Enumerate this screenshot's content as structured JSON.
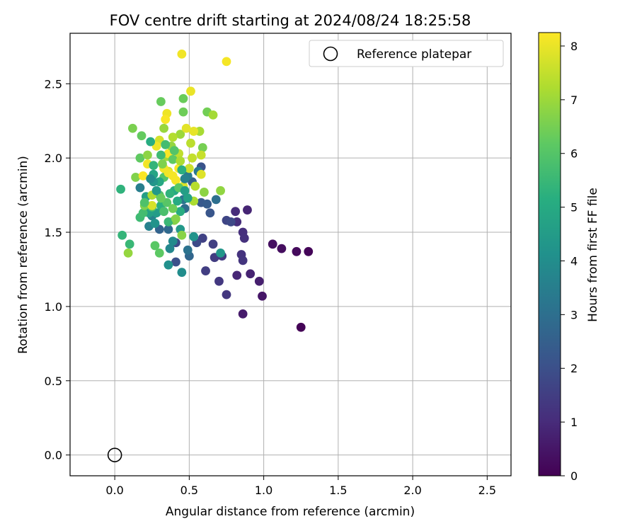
{
  "chart_data": {
    "type": "scatter",
    "title": "FOV centre drift starting at 2024/08/24 18:25:58",
    "xlabel": "Angular distance from reference (arcmin)",
    "ylabel": "Rotation from reference (arcmin)",
    "xlim": [
      -0.3,
      2.66
    ],
    "ylim": [
      -0.14,
      2.84
    ],
    "xticks": [
      0.0,
      0.5,
      1.0,
      1.5,
      2.0,
      2.5
    ],
    "xtick_labels": [
      "0.0",
      "0.5",
      "1.0",
      "1.5",
      "2.0",
      "2.5"
    ],
    "yticks": [
      0.0,
      0.5,
      1.0,
      1.5,
      2.0,
      2.5
    ],
    "ytick_labels": [
      "0.0",
      "0.5",
      "1.0",
      "1.5",
      "2.0",
      "2.5"
    ],
    "grid": true,
    "legend": {
      "placement": "upper-right",
      "entries": [
        {
          "label": "Reference platepar",
          "marker": "open-circle"
        }
      ]
    },
    "reference_point": {
      "x": 0.0,
      "y": 0.0
    },
    "colorbar": {
      "label": "Hours from first FF file",
      "range": [
        0,
        8.25
      ],
      "ticks": [
        0,
        1,
        2,
        3,
        4,
        5,
        6,
        7,
        8
      ],
      "tick_labels": [
        "0",
        "1",
        "2",
        "3",
        "4",
        "5",
        "6",
        "7",
        "8"
      ],
      "colormap": "viridis"
    },
    "points": [
      [
        1.25,
        0.86,
        0.05
      ],
      [
        1.3,
        1.37,
        0.1
      ],
      [
        1.22,
        1.37,
        0.2
      ],
      [
        1.12,
        1.39,
        0.3
      ],
      [
        1.06,
        1.42,
        0.35
      ],
      [
        0.99,
        1.07,
        0.5
      ],
      [
        0.86,
        0.95,
        0.6
      ],
      [
        0.97,
        1.17,
        0.7
      ],
      [
        0.91,
        1.22,
        0.8
      ],
      [
        0.82,
        1.21,
        0.9
      ],
      [
        0.89,
        1.65,
        0.85
      ],
      [
        0.81,
        1.64,
        1.0
      ],
      [
        0.82,
        1.57,
        1.05
      ],
      [
        0.86,
        1.5,
        1.1
      ],
      [
        0.87,
        1.46,
        1.15
      ],
      [
        0.85,
        1.35,
        1.2
      ],
      [
        0.86,
        1.31,
        1.25
      ],
      [
        0.75,
        1.08,
        1.3
      ],
      [
        0.7,
        1.17,
        1.35
      ],
      [
        0.72,
        1.34,
        1.4
      ],
      [
        0.67,
        1.33,
        1.45
      ],
      [
        0.61,
        1.24,
        1.5
      ],
      [
        0.66,
        1.42,
        1.55
      ],
      [
        0.59,
        1.46,
        1.6
      ],
      [
        0.75,
        1.58,
        1.7
      ],
      [
        0.78,
        1.57,
        1.8
      ],
      [
        0.55,
        1.43,
        1.85
      ],
      [
        0.41,
        1.43,
        1.9
      ],
      [
        0.41,
        1.3,
        2.0
      ],
      [
        0.58,
        1.94,
        2.1
      ],
      [
        0.64,
        1.63,
        2.2
      ],
      [
        0.58,
        1.7,
        2.3
      ],
      [
        0.62,
        1.69,
        2.4
      ],
      [
        0.52,
        1.84,
        2.5
      ],
      [
        0.3,
        1.52,
        2.6
      ],
      [
        0.5,
        1.34,
        2.7
      ],
      [
        0.36,
        1.52,
        2.8
      ],
      [
        0.47,
        1.66,
        2.9
      ],
      [
        0.68,
        1.72,
        3.0
      ],
      [
        0.49,
        1.38,
        3.1
      ],
      [
        0.46,
        1.72,
        3.2
      ],
      [
        0.56,
        1.91,
        3.3
      ],
      [
        0.49,
        1.88,
        3.4
      ],
      [
        0.17,
        1.8,
        3.5
      ],
      [
        0.23,
        1.54,
        3.6
      ],
      [
        0.25,
        1.61,
        3.7
      ],
      [
        0.37,
        1.39,
        3.8
      ],
      [
        0.39,
        1.44,
        3.9
      ],
      [
        0.45,
        1.23,
        4.0
      ],
      [
        0.36,
        1.28,
        4.1
      ],
      [
        0.53,
        1.47,
        4.2
      ],
      [
        0.71,
        1.36,
        4.3
      ],
      [
        0.44,
        1.52,
        4.4
      ],
      [
        0.28,
        1.63,
        4.5
      ],
      [
        0.21,
        1.74,
        4.6
      ],
      [
        0.23,
        1.63,
        4.7
      ],
      [
        0.26,
        1.89,
        4.8
      ],
      [
        0.35,
        1.91,
        4.9
      ],
      [
        0.4,
        1.78,
        5.0
      ],
      [
        0.44,
        1.64,
        5.1
      ],
      [
        0.31,
        1.68,
        5.2
      ],
      [
        0.04,
        1.79,
        5.3
      ],
      [
        0.05,
        1.48,
        5.4
      ],
      [
        0.1,
        1.42,
        5.5
      ],
      [
        0.17,
        1.6,
        5.6
      ],
      [
        0.19,
        1.63,
        5.7
      ],
      [
        0.25,
        1.67,
        5.8
      ],
      [
        0.3,
        1.75,
        5.9
      ],
      [
        0.33,
        1.87,
        6.0
      ],
      [
        0.35,
        1.7,
        6.05
      ],
      [
        0.27,
        1.41,
        6.1
      ],
      [
        0.3,
        1.36,
        6.15
      ],
      [
        0.17,
        2.0,
        6.2
      ],
      [
        0.18,
        2.15,
        6.25
      ],
      [
        0.31,
        2.38,
        6.3
      ],
      [
        0.46,
        2.4,
        6.35
      ],
      [
        0.46,
        2.31,
        6.4
      ],
      [
        0.62,
        2.31,
        6.45
      ],
      [
        0.59,
        2.07,
        6.5
      ],
      [
        0.12,
        2.2,
        6.55
      ],
      [
        0.2,
        1.68,
        6.6
      ],
      [
        0.14,
        1.87,
        6.65
      ],
      [
        0.4,
        1.58,
        6.7
      ],
      [
        0.45,
        1.48,
        6.75
      ],
      [
        0.6,
        1.77,
        6.8
      ],
      [
        0.71,
        1.78,
        6.85
      ],
      [
        0.09,
        1.36,
        6.9
      ],
      [
        0.33,
        2.2,
        6.95
      ],
      [
        0.44,
        2.16,
        7.0
      ],
      [
        0.35,
        2.01,
        7.05
      ],
      [
        0.66,
        2.29,
        7.1
      ],
      [
        0.57,
        2.18,
        7.15
      ],
      [
        0.53,
        1.71,
        7.2
      ],
      [
        0.25,
        1.75,
        7.25
      ],
      [
        0.39,
        2.14,
        7.3
      ],
      [
        0.54,
        1.81,
        7.35
      ],
      [
        0.51,
        2.1,
        7.4
      ],
      [
        0.43,
        2.03,
        7.45
      ],
      [
        0.52,
        2.0,
        7.5
      ],
      [
        0.58,
        2.02,
        7.55
      ],
      [
        0.5,
        1.93,
        7.6
      ],
      [
        0.36,
        1.91,
        7.65
      ],
      [
        0.3,
        2.12,
        7.7
      ],
      [
        0.25,
        1.68,
        7.75
      ],
      [
        0.46,
        1.81,
        7.8
      ],
      [
        0.58,
        1.89,
        7.85
      ],
      [
        0.48,
        2.2,
        7.9
      ],
      [
        0.53,
        2.18,
        7.95
      ],
      [
        0.51,
        2.45,
        8.0
      ],
      [
        0.35,
        2.3,
        8.05
      ],
      [
        0.45,
        2.7,
        8.1
      ],
      [
        0.75,
        2.65,
        8.15
      ],
      [
        0.36,
        1.9,
        8.1
      ],
      [
        0.39,
        1.88,
        8.15
      ],
      [
        0.43,
        1.93,
        8.2
      ],
      [
        0.22,
        1.96,
        8.1
      ],
      [
        0.28,
        2.08,
        8.05
      ],
      [
        0.36,
        2.03,
        8.2
      ],
      [
        0.41,
        1.85,
        8.15
      ],
      [
        0.33,
        1.93,
        8.1
      ],
      [
        0.19,
        1.88,
        8.2
      ],
      [
        0.34,
        2.26,
        8.2
      ],
      [
        0.31,
        2.02,
        5.6
      ],
      [
        0.26,
        1.95,
        5.4
      ],
      [
        0.39,
        1.99,
        6.2
      ],
      [
        0.24,
        2.11,
        5.1
      ],
      [
        0.22,
        2.02,
        6.8
      ],
      [
        0.3,
        1.84,
        4.9
      ],
      [
        0.37,
        1.76,
        5.3
      ],
      [
        0.43,
        1.8,
        6.1
      ],
      [
        0.28,
        1.78,
        4.4
      ],
      [
        0.33,
        1.64,
        5.8
      ],
      [
        0.39,
        1.66,
        6.4
      ],
      [
        0.42,
        1.71,
        5.0
      ],
      [
        0.47,
        1.78,
        4.6
      ],
      [
        0.2,
        1.7,
        5.9
      ],
      [
        0.26,
        1.84,
        4.3
      ],
      [
        0.32,
        1.96,
        6.6
      ],
      [
        0.38,
        2.08,
        6.9
      ],
      [
        0.44,
        1.98,
        7.2
      ],
      [
        0.49,
        1.73,
        4.7
      ],
      [
        0.36,
        1.57,
        5.5
      ],
      [
        0.31,
        1.73,
        6.3
      ],
      [
        0.27,
        1.56,
        4.2
      ],
      [
        0.41,
        1.59,
        6.7
      ],
      [
        0.24,
        1.86,
        3.9
      ],
      [
        0.47,
        1.86,
        3.6
      ],
      [
        0.45,
        1.92,
        5.2
      ],
      [
        0.4,
        2.05,
        6.0
      ],
      [
        0.34,
        2.09,
        5.7
      ]
    ]
  }
}
